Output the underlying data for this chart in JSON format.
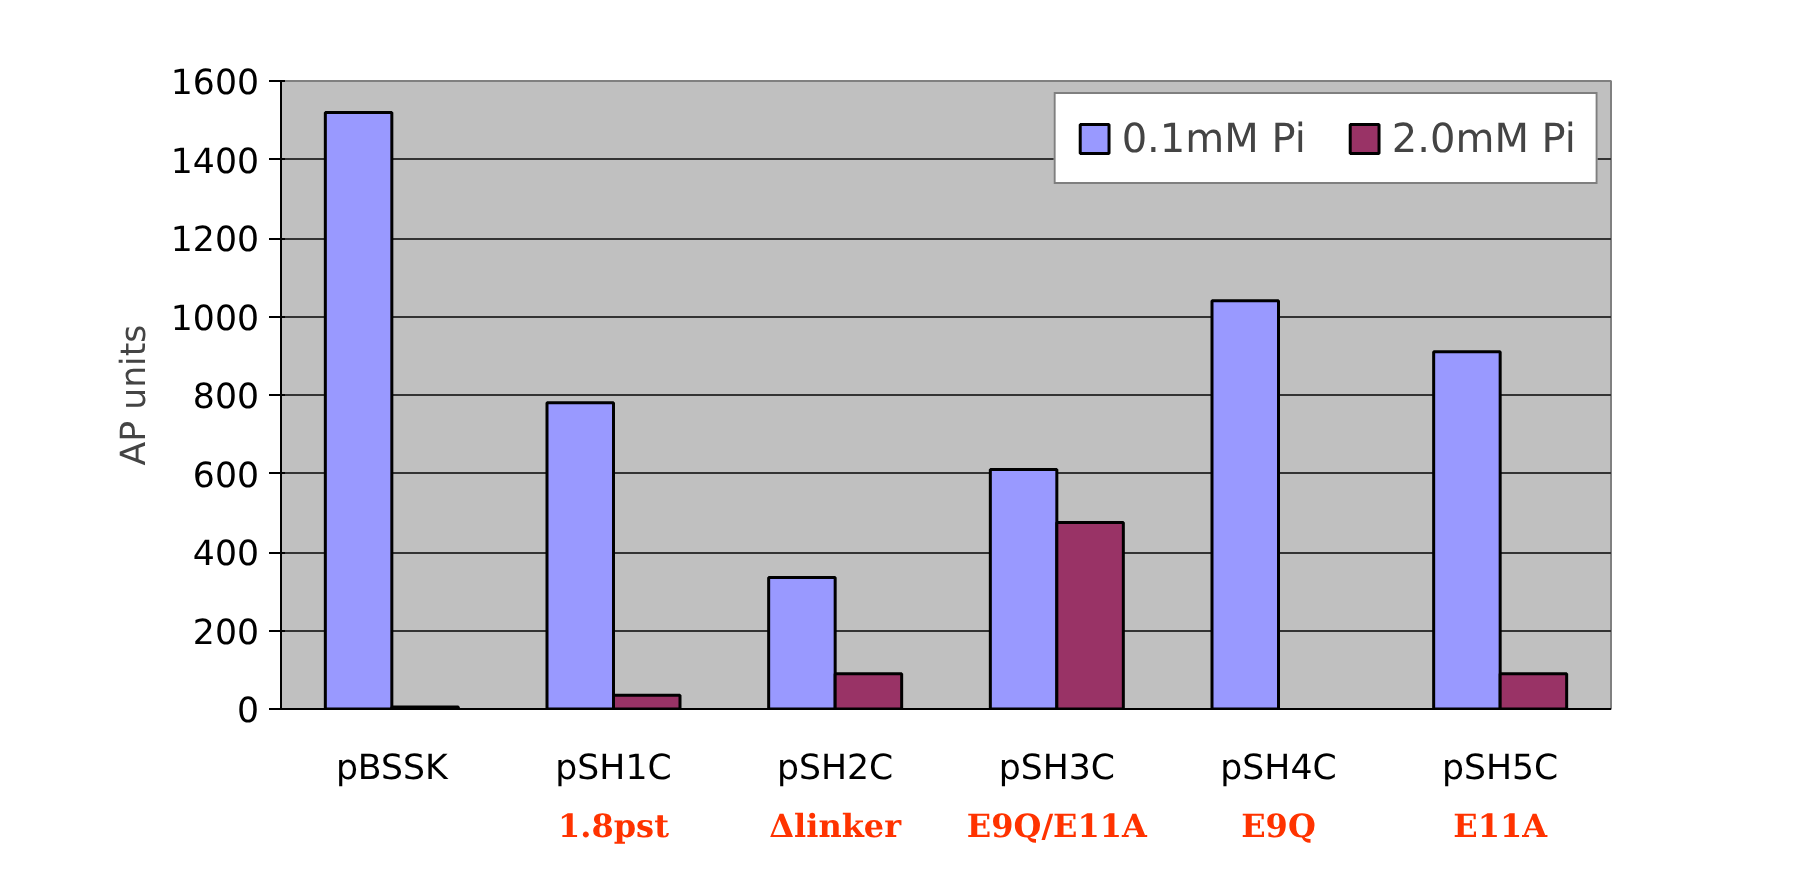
{
  "chart_data": {
    "type": "bar",
    "ylabel": "AP units",
    "categories": [
      "pBSSK",
      "pSH1C",
      "pSH2C",
      "pSH3C",
      "pSH4C",
      "pSH5C"
    ],
    "series": [
      {
        "name": "0.1mM Pi",
        "color": "#9999ff",
        "values": [
          1520,
          780,
          335,
          610,
          1040,
          910
        ]
      },
      {
        "name": "2.0mM Pi",
        "color": "#993366",
        "values": [
          5,
          35,
          90,
          475,
          null,
          90
        ]
      }
    ],
    "ylim": [
      0,
      1600
    ],
    "yticks": [
      0,
      200,
      400,
      600,
      800,
      1000,
      1200,
      1400,
      1600
    ],
    "grid": "y",
    "legend": "top right",
    "annotations": [
      "1.8pst",
      "Δlinker",
      "E9Q/E11A",
      "E9Q",
      "E11A"
    ]
  }
}
